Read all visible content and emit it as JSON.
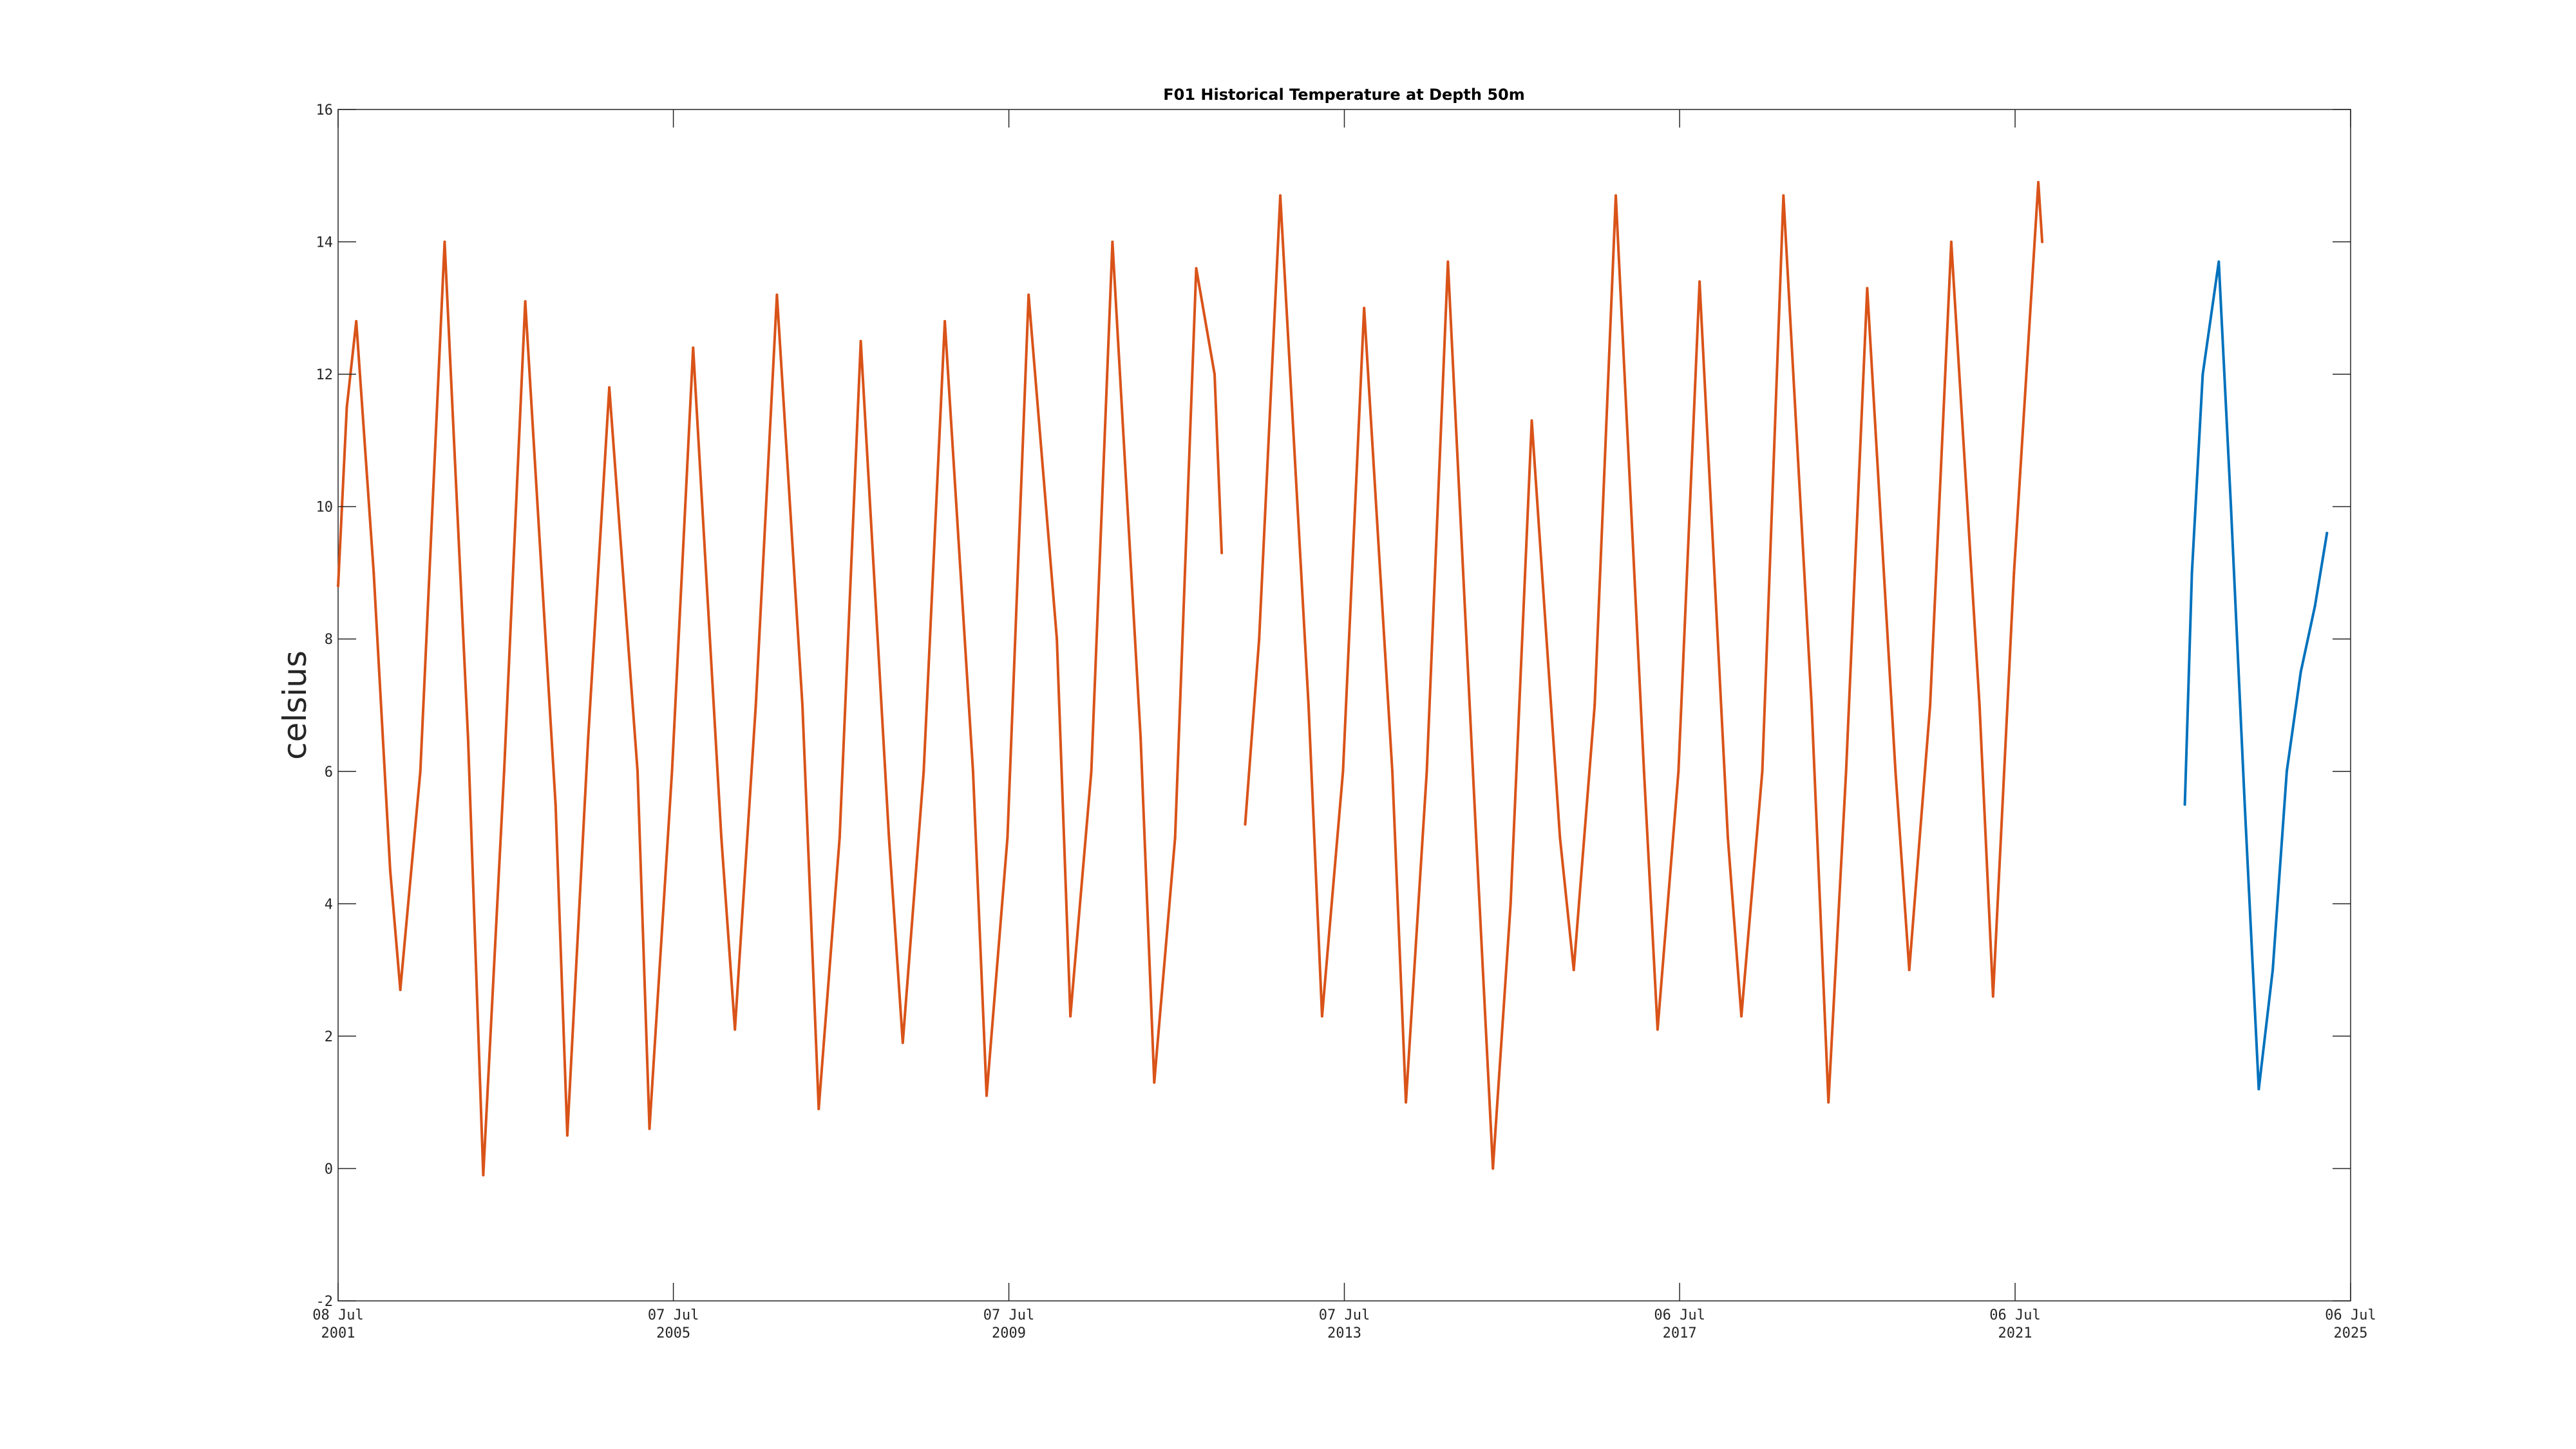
{
  "chart_data": {
    "type": "line",
    "title": "F01 Historical Temperature at Depth 50m",
    "xlabel": "",
    "ylabel": "celsius",
    "xlim": [
      "2001-07-08",
      "2025-07-06"
    ],
    "ylim": [
      -2,
      16
    ],
    "yticks": [
      -2,
      0,
      2,
      4,
      6,
      8,
      10,
      12,
      14,
      16
    ],
    "xticks": [
      {
        "date": "2001-07-08",
        "day": "08 Jul",
        "year": "2001"
      },
      {
        "date": "2005-07-07",
        "day": "07 Jul",
        "year": "2005"
      },
      {
        "date": "2009-07-07",
        "day": "07 Jul",
        "year": "2009"
      },
      {
        "date": "2013-07-07",
        "day": "07 Jul",
        "year": "2013"
      },
      {
        "date": "2017-07-06",
        "day": "06 Jul",
        "year": "2017"
      },
      {
        "date": "2021-07-06",
        "day": "06 Jul",
        "year": "2021"
      },
      {
        "date": "2025-07-06",
        "day": "06 Jul",
        "year": "2025"
      }
    ],
    "grid": false,
    "series": [
      {
        "color": "#D95319",
        "segments": [
          [
            {
              "x": "2001-07-08",
              "y": 8.8
            },
            {
              "x": "2001-08-15",
              "y": 11.5
            },
            {
              "x": "2001-09-25",
              "y": 12.8
            },
            {
              "x": "2001-12-10",
              "y": 9.0
            },
            {
              "x": "2002-02-20",
              "y": 4.5
            },
            {
              "x": "2002-04-05",
              "y": 2.7
            },
            {
              "x": "2002-07-01",
              "y": 6.0
            },
            {
              "x": "2002-10-15",
              "y": 14.0
            },
            {
              "x": "2003-01-25",
              "y": 6.5
            },
            {
              "x": "2003-04-01",
              "y": -0.1
            },
            {
              "x": "2003-07-01",
              "y": 6.0
            },
            {
              "x": "2003-10-01",
              "y": 13.1
            },
            {
              "x": "2004-02-10",
              "y": 5.5
            },
            {
              "x": "2004-04-01",
              "y": 0.5
            },
            {
              "x": "2004-07-01",
              "y": 6.5
            },
            {
              "x": "2004-10-01",
              "y": 11.8
            },
            {
              "x": "2005-02-01",
              "y": 6.0
            },
            {
              "x": "2005-03-25",
              "y": 0.6
            },
            {
              "x": "2005-07-01",
              "y": 6.0
            },
            {
              "x": "2005-10-01",
              "y": 12.4
            },
            {
              "x": "2006-02-01",
              "y": 5.0
            },
            {
              "x": "2006-04-01",
              "y": 2.1
            },
            {
              "x": "2006-07-01",
              "y": 7.0
            },
            {
              "x": "2006-10-01",
              "y": 13.2
            },
            {
              "x": "2007-01-20",
              "y": 7.0
            },
            {
              "x": "2007-04-01",
              "y": 0.9
            },
            {
              "x": "2007-07-01",
              "y": 5.0
            },
            {
              "x": "2007-10-01",
              "y": 12.5
            },
            {
              "x": "2008-02-01",
              "y": 5.0
            },
            {
              "x": "2008-04-01",
              "y": 1.9
            },
            {
              "x": "2008-07-01",
              "y": 6.0
            },
            {
              "x": "2008-10-01",
              "y": 12.8
            },
            {
              "x": "2009-02-01",
              "y": 6.0
            },
            {
              "x": "2009-04-01",
              "y": 1.1
            },
            {
              "x": "2009-07-01",
              "y": 5.0
            },
            {
              "x": "2009-10-01",
              "y": 13.2
            },
            {
              "x": "2010-02-01",
              "y": 8.0
            },
            {
              "x": "2010-04-01",
              "y": 2.3
            },
            {
              "x": "2010-07-01",
              "y": 6.0
            },
            {
              "x": "2010-10-01",
              "y": 14.0
            },
            {
              "x": "2011-02-01",
              "y": 6.5
            },
            {
              "x": "2011-04-01",
              "y": 1.3
            },
            {
              "x": "2011-07-01",
              "y": 5.0
            },
            {
              "x": "2011-10-01",
              "y": 13.6
            },
            {
              "x": "2011-12-20",
              "y": 12.0
            },
            {
              "x": "2012-01-20",
              "y": 9.3
            }
          ],
          [
            {
              "x": "2012-05-01",
              "y": 5.2
            },
            {
              "x": "2012-07-01",
              "y": 8.0
            },
            {
              "x": "2012-10-01",
              "y": 14.7
            },
            {
              "x": "2013-02-01",
              "y": 7.0
            },
            {
              "x": "2013-04-01",
              "y": 2.3
            },
            {
              "x": "2013-07-01",
              "y": 6.0
            },
            {
              "x": "2013-10-01",
              "y": 13.0
            },
            {
              "x": "2014-02-01",
              "y": 6.0
            },
            {
              "x": "2014-04-01",
              "y": 1.0
            },
            {
              "x": "2014-07-01",
              "y": 6.0
            },
            {
              "x": "2014-10-01",
              "y": 13.7
            },
            {
              "x": "2015-02-01",
              "y": 5.0
            },
            {
              "x": "2015-04-15",
              "y": 0.0
            },
            {
              "x": "2015-07-01",
              "y": 4.0
            },
            {
              "x": "2015-10-01",
              "y": 11.3
            },
            {
              "x": "2016-02-01",
              "y": 5.0
            },
            {
              "x": "2016-04-01",
              "y": 3.0
            },
            {
              "x": "2016-07-01",
              "y": 7.0
            },
            {
              "x": "2016-10-01",
              "y": 14.7
            },
            {
              "x": "2017-02-01",
              "y": 6.0
            },
            {
              "x": "2017-04-01",
              "y": 2.1
            },
            {
              "x": "2017-07-01",
              "y": 6.0
            },
            {
              "x": "2017-10-01",
              "y": 13.4
            },
            {
              "x": "2018-02-01",
              "y": 5.0
            },
            {
              "x": "2018-04-01",
              "y": 2.3
            },
            {
              "x": "2018-07-01",
              "y": 6.0
            },
            {
              "x": "2018-10-01",
              "y": 14.7
            },
            {
              "x": "2019-02-01",
              "y": 7.0
            },
            {
              "x": "2019-04-15",
              "y": 1.0
            },
            {
              "x": "2019-07-01",
              "y": 6.0
            },
            {
              "x": "2019-10-01",
              "y": 13.3
            },
            {
              "x": "2020-02-01",
              "y": 6.0
            },
            {
              "x": "2020-04-01",
              "y": 3.0
            },
            {
              "x": "2020-07-01",
              "y": 7.0
            },
            {
              "x": "2020-10-01",
              "y": 14.0
            },
            {
              "x": "2021-02-01",
              "y": 7.0
            },
            {
              "x": "2021-04-01",
              "y": 2.6
            },
            {
              "x": "2021-07-01",
              "y": 9.0
            },
            {
              "x": "2021-10-15",
              "y": 14.9
            },
            {
              "x": "2021-11-01",
              "y": 14.0
            }
          ]
        ]
      },
      {
        "color": "#0072BD",
        "segments": [
          [
            {
              "x": "2023-07-15",
              "y": 5.5
            },
            {
              "x": "2023-08-15",
              "y": 9.0
            },
            {
              "x": "2023-10-01",
              "y": 12.0
            },
            {
              "x": "2023-12-10",
              "y": 13.7
            },
            {
              "x": "2024-02-01",
              "y": 10.0
            },
            {
              "x": "2024-04-01",
              "y": 5.5
            },
            {
              "x": "2024-06-01",
              "y": 1.2
            },
            {
              "x": "2024-08-01",
              "y": 3.0
            },
            {
              "x": "2024-10-01",
              "y": 6.0
            },
            {
              "x": "2024-12-01",
              "y": 7.5
            },
            {
              "x": "2025-02-01",
              "y": 8.5
            },
            {
              "x": "2025-03-25",
              "y": 9.6
            }
          ]
        ]
      }
    ]
  }
}
